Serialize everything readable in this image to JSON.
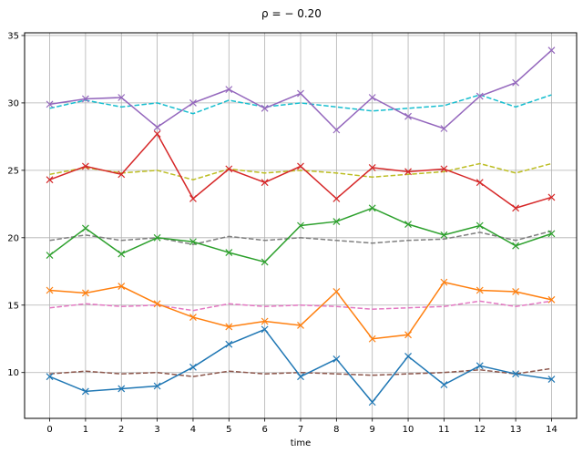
{
  "chart_data": {
    "type": "line",
    "title": "ρ = − 0.20",
    "xlabel": "time",
    "ylabel": "",
    "x": [
      0,
      1,
      2,
      3,
      4,
      5,
      6,
      7,
      8,
      9,
      10,
      11,
      12,
      13,
      14
    ],
    "xticks": [
      "0",
      "1",
      "2",
      "3",
      "4",
      "5",
      "6",
      "7",
      "8",
      "9",
      "10",
      "11",
      "12",
      "13",
      "14"
    ],
    "yticks": [
      "10",
      "15",
      "20",
      "25",
      "30",
      "35"
    ],
    "xlim": [
      -0.7,
      14.7
    ],
    "ylim": [
      6.6,
      35.2
    ],
    "grid": true,
    "series": [
      {
        "color": "#1f77b4",
        "style": "solid",
        "marker": "x",
        "values": [
          9.7,
          8.6,
          8.8,
          9.0,
          10.4,
          12.1,
          13.2,
          9.7,
          11.0,
          7.8,
          11.2,
          9.1,
          10.5,
          9.9,
          9.5
        ]
      },
      {
        "color": "#ff7f0e",
        "style": "solid",
        "marker": "x",
        "values": [
          16.1,
          15.9,
          16.4,
          15.1,
          14.1,
          13.4,
          13.8,
          13.5,
          16.0,
          12.5,
          12.8,
          16.7,
          16.1,
          16.0,
          15.4
        ]
      },
      {
        "color": "#2ca02c",
        "style": "solid",
        "marker": "x",
        "values": [
          18.7,
          20.7,
          18.8,
          20.0,
          19.7,
          18.9,
          18.2,
          20.9,
          21.2,
          22.2,
          21.0,
          20.2,
          20.9,
          19.4,
          20.3
        ]
      },
      {
        "color": "#d62728",
        "style": "solid",
        "marker": "x",
        "values": [
          24.3,
          25.3,
          24.7,
          27.7,
          22.9,
          25.1,
          24.1,
          25.3,
          22.9,
          25.2,
          24.9,
          25.1,
          24.1,
          22.2,
          23.0
        ]
      },
      {
        "color": "#9467bd",
        "style": "solid",
        "marker": "x",
        "values": [
          29.9,
          30.3,
          30.4,
          28.2,
          30.0,
          31.0,
          29.6,
          30.7,
          28.0,
          30.4,
          29.0,
          28.1,
          30.5,
          31.5,
          33.9
        ]
      },
      {
        "color": "#8c564b",
        "style": "dashed",
        "marker": "",
        "values": [
          9.9,
          10.1,
          9.9,
          10.0,
          9.7,
          10.1,
          9.9,
          10.0,
          9.9,
          9.8,
          9.9,
          10.0,
          10.2,
          9.9,
          10.3
        ]
      },
      {
        "color": "#e377c2",
        "style": "dashed",
        "marker": "",
        "values": [
          14.8,
          15.1,
          14.9,
          15.0,
          14.6,
          15.1,
          14.9,
          15.0,
          14.9,
          14.7,
          14.8,
          14.9,
          15.3,
          14.9,
          15.3
        ]
      },
      {
        "color": "#7f7f7f",
        "style": "dashed",
        "marker": "",
        "values": [
          19.8,
          20.2,
          19.8,
          20.0,
          19.5,
          20.1,
          19.8,
          20.0,
          19.8,
          19.6,
          19.8,
          19.9,
          20.4,
          19.8,
          20.5
        ]
      },
      {
        "color": "#bcbd22",
        "style": "dashed",
        "marker": "",
        "values": [
          24.7,
          25.2,
          24.8,
          25.0,
          24.3,
          25.1,
          24.8,
          25.0,
          24.8,
          24.5,
          24.7,
          24.9,
          25.5,
          24.8,
          25.5
        ]
      },
      {
        "color": "#17becf",
        "style": "dashed",
        "marker": "",
        "values": [
          29.6,
          30.2,
          29.7,
          30.0,
          29.2,
          30.2,
          29.7,
          30.0,
          29.7,
          29.4,
          29.6,
          29.8,
          30.6,
          29.7,
          30.6
        ]
      }
    ]
  }
}
